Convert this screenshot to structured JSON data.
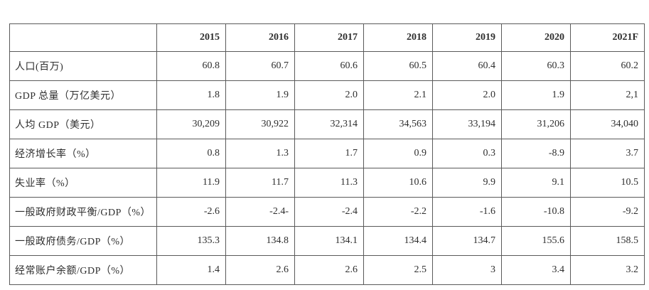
{
  "table": {
    "years": [
      "2015",
      "2016",
      "2017",
      "2018",
      "2019",
      "2020",
      "2021F"
    ],
    "rows": [
      {
        "label": "人口(百万)",
        "values": [
          "60.8",
          "60.7",
          "60.6",
          "60.5",
          "60.4",
          "60.3",
          "60.2"
        ]
      },
      {
        "label": "GDP 总量（万亿美元）",
        "values": [
          "1.8",
          "1.9",
          "2.0",
          "2.1",
          "2.0",
          "1.9",
          "2,1"
        ]
      },
      {
        "label": "人均 GDP（美元）",
        "values": [
          "30,209",
          "30,922",
          "32,314",
          "34,563",
          "33,194",
          "31,206",
          "34,040"
        ]
      },
      {
        "label": "经济增长率（%）",
        "values": [
          "0.8",
          "1.3",
          "1.7",
          "0.9",
          "0.3",
          "-8.9",
          "3.7"
        ]
      },
      {
        "label": "失业率（%）",
        "values": [
          "11.9",
          "11.7",
          "11.3",
          "10.6",
          "9.9",
          "9.1",
          "10.5"
        ]
      },
      {
        "label": "一般政府财政平衡/GDP（%）",
        "values": [
          "-2.6",
          "-2.4-",
          "-2.4",
          "-2.2",
          "-1.6",
          "-10.8",
          "-9.2"
        ]
      },
      {
        "label": "一般政府债务/GDP（%）",
        "values": [
          "135.3",
          "134.8",
          "134.1",
          "134.4",
          "134.7",
          "155.6",
          "158.5"
        ]
      },
      {
        "label": "经常账户余额/GDP（%）",
        "values": [
          "1.4",
          "2.6",
          "2.6",
          "2.5",
          "3",
          "3.4",
          "3.2"
        ]
      }
    ]
  }
}
